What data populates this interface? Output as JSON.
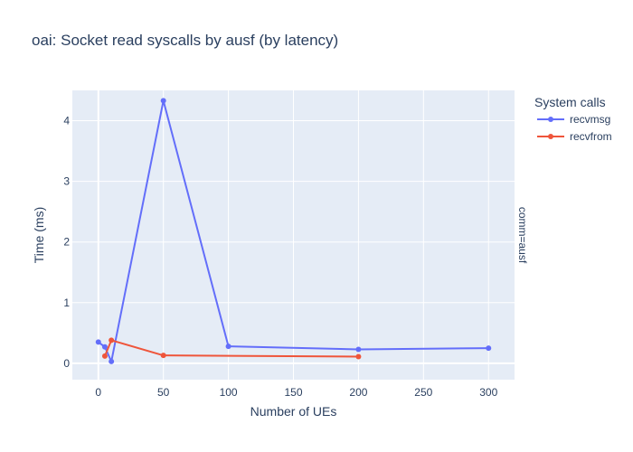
{
  "chart_data": {
    "type": "line",
    "title": "oai: Socket read syscalls by ausf (by latency)",
    "xlabel": "Number of UEs",
    "ylabel": "Time (ms)",
    "facet_label": "comm=ausf",
    "legend_title": "System calls",
    "legend_position": "right",
    "xlim": [
      -20,
      320
    ],
    "ylim": [
      -0.27,
      4.5
    ],
    "x_ticks": [
      0,
      50,
      100,
      150,
      200,
      250,
      300
    ],
    "y_ticks": [
      0,
      1,
      2,
      3,
      4
    ],
    "grid": true,
    "series": [
      {
        "name": "recvmsg",
        "color": "#636efa",
        "x": [
          0,
          5,
          10,
          50,
          100,
          200,
          300
        ],
        "y": [
          0.35,
          0.27,
          0.03,
          4.33,
          0.28,
          0.23,
          0.25
        ]
      },
      {
        "name": "recvfrom",
        "color": "#ef553b",
        "x": [
          5,
          10,
          50,
          200
        ],
        "y": [
          0.12,
          0.38,
          0.13,
          0.11
        ]
      }
    ]
  }
}
